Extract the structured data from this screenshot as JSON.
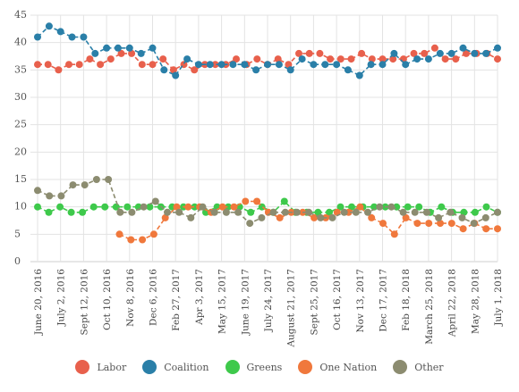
{
  "chart_data": {
    "type": "line",
    "ylim": [
      0,
      45
    ],
    "yticks": [
      0,
      5,
      10,
      15,
      20,
      25,
      30,
      35,
      40,
      45
    ],
    "xlabels": [
      "June 20, 2016",
      "July 2, 2016",
      "Sept 12, 2016",
      "Oct 10, 2016",
      "Nov 8, 2016",
      "Dec 6, 2016",
      "Feb 27, 2017",
      "Apr 3, 2017",
      "May 15, 2017",
      "June 19, 2017",
      "July 24, 2017",
      "August 21, 2017",
      "Sept 25, 2017",
      "Oct 16, 2017",
      "Nov 13, 2017",
      "Dec 17, 2017",
      "Feb 18, 2018",
      "March 25, 2018",
      "April 22, 2018",
      "May 28, 2018",
      "July 1, 2018"
    ],
    "grid": true,
    "legend_position": "bottom",
    "series": [
      {
        "name": "Labor",
        "color": "#e8604c",
        "values": [
          36,
          36,
          35,
          36,
          36,
          37,
          36,
          37,
          38,
          38,
          36,
          36,
          37,
          35,
          36,
          35,
          36,
          36,
          36,
          37,
          36,
          37,
          36,
          37,
          36,
          38,
          38,
          38,
          37,
          37,
          37,
          38,
          37,
          37,
          37,
          37,
          38,
          38,
          39,
          37,
          37,
          38,
          38,
          38,
          37
        ]
      },
      {
        "name": "Coalition",
        "color": "#2a7fa8",
        "values": [
          41,
          43,
          42,
          41,
          41,
          38,
          39,
          39,
          39,
          38,
          39,
          35,
          34,
          37,
          36,
          36,
          36,
          36,
          36,
          35,
          36,
          36,
          35,
          37,
          36,
          36,
          36,
          35,
          34,
          36,
          36,
          38,
          36,
          37,
          37,
          38,
          38,
          39,
          38,
          38,
          39
        ]
      },
      {
        "name": "Greens",
        "color": "#3ec94b",
        "values": [
          10,
          9,
          10,
          9,
          9,
          10,
          10,
          10,
          10,
          10,
          10,
          10,
          10,
          10,
          10,
          9,
          10,
          10,
          10,
          9,
          10,
          9,
          11,
          9,
          9,
          9,
          9,
          10,
          10,
          10,
          10,
          10,
          10,
          10,
          10,
          9,
          10,
          9,
          9,
          9,
          10,
          9
        ]
      },
      {
        "name": "One Nation",
        "color": "#f0783c",
        "values": [
          5,
          4,
          4,
          5,
          8,
          10,
          10,
          10,
          9,
          10,
          10,
          11,
          11,
          9,
          8,
          9,
          9,
          8,
          8,
          9,
          9,
          10,
          8,
          7,
          5,
          8,
          7,
          7,
          7,
          7,
          6,
          7,
          6,
          6
        ]
      },
      {
        "name": "Other",
        "color": "#8c8c70",
        "values": [
          13,
          12,
          12,
          14,
          14,
          15,
          15,
          9,
          9,
          10,
          11,
          9,
          9,
          8,
          10,
          9,
          9,
          9,
          7,
          8,
          9,
          9,
          9,
          9,
          8,
          8,
          9,
          9,
          9,
          10,
          10,
          9,
          9,
          9,
          8,
          9,
          8,
          7,
          8,
          9
        ]
      }
    ]
  }
}
